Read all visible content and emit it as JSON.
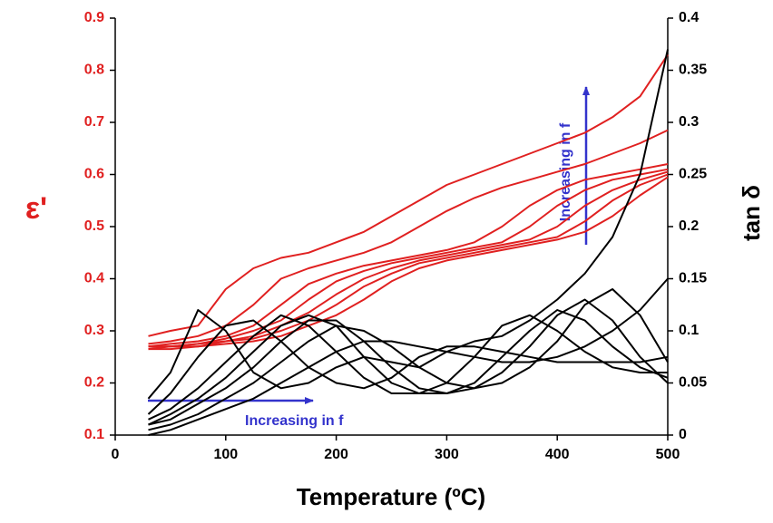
{
  "chart_data": {
    "type": "line",
    "xlabel": "Temperature (ºC)",
    "ylabel": "ε'",
    "y2label": "tan δ",
    "annotations": [
      "Increasing in f",
      "Increasing in f"
    ],
    "annotation_color": "#3333cc",
    "y_color": "#e02020",
    "y2_color": "#000000",
    "x": [
      30,
      50,
      75,
      100,
      125,
      150,
      175,
      200,
      225,
      250,
      275,
      300,
      325,
      350,
      375,
      400,
      425,
      450,
      475,
      500
    ],
    "xlim": [
      0,
      500
    ],
    "xticks": [
      0,
      100,
      200,
      300,
      400,
      500
    ],
    "ylim": [
      0.1,
      0.9
    ],
    "yticks": [
      0.1,
      0.2,
      0.3,
      0.4,
      0.5,
      0.6,
      0.7,
      0.8,
      0.9
    ],
    "y2lim": [
      0,
      0.4
    ],
    "y2ticks": [
      0,
      0.05,
      0.1,
      0.15,
      0.2,
      0.25,
      0.3,
      0.35,
      0.4
    ],
    "series": [
      {
        "color": "#e02020",
        "axis": "y",
        "values": [
          0.29,
          0.3,
          0.31,
          0.38,
          0.42,
          0.44,
          0.45,
          0.47,
          0.49,
          0.52,
          0.55,
          0.58,
          0.6,
          0.62,
          0.64,
          0.66,
          0.68,
          0.71,
          0.75,
          0.83
        ]
      },
      {
        "color": "#e02020",
        "axis": "y",
        "values": [
          0.275,
          0.28,
          0.29,
          0.31,
          0.35,
          0.4,
          0.42,
          0.435,
          0.45,
          0.47,
          0.5,
          0.53,
          0.555,
          0.575,
          0.59,
          0.605,
          0.62,
          0.64,
          0.66,
          0.685
        ]
      },
      {
        "color": "#e02020",
        "axis": "y",
        "values": [
          0.27,
          0.275,
          0.28,
          0.29,
          0.31,
          0.35,
          0.39,
          0.41,
          0.425,
          0.435,
          0.445,
          0.455,
          0.47,
          0.5,
          0.54,
          0.57,
          0.59,
          0.6,
          0.61,
          0.62
        ]
      },
      {
        "color": "#e02020",
        "axis": "y",
        "values": [
          0.27,
          0.27,
          0.275,
          0.285,
          0.3,
          0.32,
          0.36,
          0.395,
          0.415,
          0.43,
          0.44,
          0.45,
          0.46,
          0.47,
          0.5,
          0.54,
          0.57,
          0.59,
          0.6,
          0.61
        ]
      },
      {
        "color": "#e02020",
        "axis": "y",
        "values": [
          0.27,
          0.27,
          0.275,
          0.28,
          0.29,
          0.31,
          0.335,
          0.37,
          0.4,
          0.42,
          0.435,
          0.445,
          0.455,
          0.465,
          0.475,
          0.5,
          0.54,
          0.57,
          0.59,
          0.605
        ]
      },
      {
        "color": "#e02020",
        "axis": "y",
        "values": [
          0.265,
          0.27,
          0.27,
          0.28,
          0.285,
          0.3,
          0.32,
          0.35,
          0.385,
          0.41,
          0.43,
          0.44,
          0.45,
          0.46,
          0.47,
          0.48,
          0.51,
          0.55,
          0.58,
          0.6
        ]
      },
      {
        "color": "#e02020",
        "axis": "y",
        "values": [
          0.265,
          0.265,
          0.27,
          0.275,
          0.28,
          0.29,
          0.31,
          0.33,
          0.36,
          0.395,
          0.42,
          0.435,
          0.445,
          0.455,
          0.465,
          0.475,
          0.49,
          0.52,
          0.56,
          0.595
        ]
      },
      {
        "color": "#000000",
        "axis": "y2",
        "values": [
          0.035,
          0.06,
          0.12,
          0.1,
          0.06,
          0.045,
          0.05,
          0.065,
          0.075,
          0.07,
          0.065,
          0.08,
          0.09,
          0.095,
          0.11,
          0.13,
          0.155,
          0.19,
          0.25,
          0.37
        ]
      },
      {
        "color": "#000000",
        "axis": "y2",
        "values": [
          0.02,
          0.04,
          0.075,
          0.105,
          0.11,
          0.09,
          0.065,
          0.05,
          0.045,
          0.055,
          0.075,
          0.085,
          0.085,
          0.08,
          0.075,
          0.07,
          0.07,
          0.07,
          0.07,
          0.075
        ]
      },
      {
        "color": "#000000",
        "axis": "y2",
        "values": [
          0.015,
          0.025,
          0.045,
          0.07,
          0.095,
          0.115,
          0.105,
          0.08,
          0.055,
          0.04,
          0.04,
          0.05,
          0.075,
          0.105,
          0.115,
          0.1,
          0.08,
          0.065,
          0.06,
          0.06
        ]
      },
      {
        "color": "#000000",
        "axis": "y2",
        "values": [
          0.01,
          0.02,
          0.035,
          0.055,
          0.08,
          0.105,
          0.115,
          0.105,
          0.075,
          0.05,
          0.04,
          0.04,
          0.05,
          0.075,
          0.1,
          0.12,
          0.11,
          0.085,
          0.065,
          0.055
        ]
      },
      {
        "color": "#000000",
        "axis": "y2",
        "values": [
          0.01,
          0.015,
          0.03,
          0.045,
          0.065,
          0.09,
          0.11,
          0.11,
          0.09,
          0.065,
          0.045,
          0.04,
          0.045,
          0.06,
          0.085,
          0.115,
          0.13,
          0.11,
          0.075,
          0.05
        ]
      },
      {
        "color": "#000000",
        "axis": "y2",
        "values": [
          0.005,
          0.01,
          0.02,
          0.035,
          0.05,
          0.07,
          0.09,
          0.105,
          0.1,
          0.085,
          0.065,
          0.05,
          0.045,
          0.05,
          0.065,
          0.09,
          0.125,
          0.14,
          0.115,
          0.07
        ]
      },
      {
        "color": "#000000",
        "axis": "y2",
        "values": [
          0.0,
          0.005,
          0.015,
          0.025,
          0.035,
          0.05,
          0.065,
          0.08,
          0.09,
          0.09,
          0.085,
          0.08,
          0.075,
          0.07,
          0.07,
          0.075,
          0.085,
          0.1,
          0.12,
          0.15
        ]
      }
    ]
  }
}
